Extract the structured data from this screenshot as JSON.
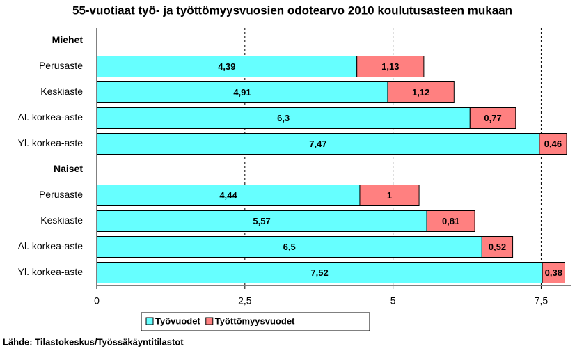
{
  "chart_data": {
    "type": "stacked-barh",
    "title": "55-vuotiaat työ- ja työttömyysvuosien odotearvo 2010 koulutusasteen mukaan",
    "categories": [
      "Miehet",
      "Perusaste",
      "Keskiaste",
      "Al. korkea-aste",
      "Yl. korkea-aste",
      "Naiset",
      "Perusaste",
      "Keskiaste",
      "Al. korkea-aste",
      "Yl. korkea-aste"
    ],
    "series": [
      {
        "name": "Työvuodet",
        "color": "#66ffff",
        "values": [
          null,
          4.39,
          4.91,
          6.3,
          7.47,
          null,
          4.44,
          5.57,
          6.5,
          7.52
        ],
        "value_labels": [
          null,
          "4,39",
          "4,91",
          "6,3",
          "7,47",
          null,
          "4,44",
          "5,57",
          "6,5",
          "7,52"
        ]
      },
      {
        "name": "Työttömyysvuodet",
        "color": "#ff8080",
        "values": [
          null,
          1.13,
          1.12,
          0.77,
          0.46,
          null,
          1,
          0.81,
          0.52,
          0.38
        ],
        "value_labels": [
          null,
          "1,13",
          "1,12",
          "0,77",
          "0,46",
          null,
          "1",
          "0,81",
          "0,52",
          "0,38"
        ]
      }
    ],
    "xlim": [
      0,
      8
    ],
    "xticks": [
      0,
      {
        "value": 2.5,
        "label": "2,5"
      },
      5,
      {
        "value": 7.5,
        "label": "7,5"
      }
    ],
    "grid": true,
    "legend": "bottom",
    "source": "Lähde: Tilastokeskus/Työssäkäyntitilastot"
  }
}
